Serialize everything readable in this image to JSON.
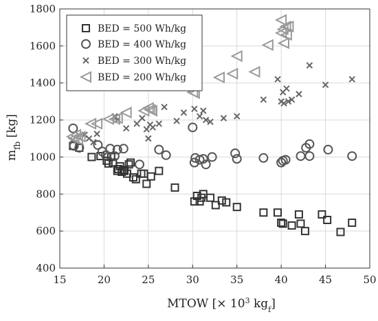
{
  "chart_data": {
    "type": "scatter",
    "title": "",
    "xlabel_main": "MTOW [× 10",
    "xlabel_sup": "3",
    "xlabel_unit": " kg",
    "xlabel_sub": "f",
    "xlabel_close": "]",
    "ylabel_main": "m",
    "ylabel_sub": "fb",
    "ylabel_unit": " [kg]",
    "xlim": [
      15,
      50
    ],
    "ylim": [
      400,
      1800
    ],
    "xticks": [
      15,
      20,
      25,
      30,
      35,
      40,
      45,
      50
    ],
    "yticks": [
      400,
      600,
      800,
      1000,
      1200,
      1400,
      1600,
      1800
    ],
    "grid": true,
    "legend_position": "top-left",
    "series": [
      {
        "name": "BED = 500 Wh/kg",
        "marker": "square",
        "color": "#333333",
        "points": [
          [
            16.5,
            1060
          ],
          [
            17.2,
            1050
          ],
          [
            18.6,
            1000
          ],
          [
            19.6,
            1005
          ],
          [
            20.3,
            980
          ],
          [
            20.5,
            965
          ],
          [
            20.8,
            1000
          ],
          [
            21.0,
            970
          ],
          [
            21.5,
            925
          ],
          [
            21.6,
            935
          ],
          [
            21.8,
            950
          ],
          [
            22.0,
            920
          ],
          [
            22.2,
            930
          ],
          [
            22.3,
            925
          ],
          [
            22.6,
            910
          ],
          [
            22.8,
            960
          ],
          [
            23.0,
            970
          ],
          [
            23.3,
            890
          ],
          [
            23.6,
            880
          ],
          [
            24.2,
            910
          ],
          [
            24.5,
            910
          ],
          [
            24.8,
            855
          ],
          [
            25.3,
            895
          ],
          [
            26.2,
            925
          ],
          [
            28.0,
            835
          ],
          [
            30.2,
            760
          ],
          [
            30.5,
            790
          ],
          [
            30.8,
            760
          ],
          [
            31.0,
            780
          ],
          [
            31.2,
            800
          ],
          [
            32.0,
            780
          ],
          [
            32.6,
            740
          ],
          [
            33.3,
            765
          ],
          [
            33.8,
            755
          ],
          [
            35.0,
            730
          ],
          [
            38.0,
            700
          ],
          [
            39.6,
            700
          ],
          [
            40.0,
            645
          ],
          [
            40.2,
            640
          ],
          [
            41.2,
            630
          ],
          [
            42.0,
            690
          ],
          [
            42.2,
            640
          ],
          [
            42.7,
            600
          ],
          [
            44.6,
            690
          ],
          [
            45.2,
            660
          ],
          [
            46.7,
            595
          ],
          [
            48.0,
            645
          ]
        ]
      },
      {
        "name": "BED = 400 Wh/kg",
        "marker": "circle",
        "color": "#555555",
        "points": [
          [
            16.5,
            1155
          ],
          [
            16.6,
            1060
          ],
          [
            17.2,
            1050
          ],
          [
            19.3,
            1065
          ],
          [
            19.8,
            1030
          ],
          [
            20.2,
            1010
          ],
          [
            20.7,
            1045
          ],
          [
            21.2,
            1005
          ],
          [
            21.5,
            1040
          ],
          [
            22.2,
            1045
          ],
          [
            24.0,
            960
          ],
          [
            26.2,
            1040
          ],
          [
            27.0,
            1010
          ],
          [
            30.0,
            1160
          ],
          [
            30.2,
            970
          ],
          [
            30.3,
            995
          ],
          [
            30.8,
            985
          ],
          [
            31.2,
            990
          ],
          [
            31.5,
            960
          ],
          [
            32.2,
            1000
          ],
          [
            34.8,
            1020
          ],
          [
            35.0,
            990
          ],
          [
            38.0,
            995
          ],
          [
            40.0,
            970
          ],
          [
            40.2,
            980
          ],
          [
            40.5,
            985
          ],
          [
            42.2,
            1005
          ],
          [
            42.8,
            1050
          ],
          [
            43.2,
            1070
          ],
          [
            43.2,
            1005
          ],
          [
            45.3,
            1040
          ],
          [
            48.0,
            1005
          ]
        ]
      },
      {
        "name": "BED = 300 Wh/kg",
        "marker": "x",
        "color": "#666666",
        "points": [
          [
            16.4,
            1090
          ],
          [
            17.8,
            1120
          ],
          [
            18.3,
            1100
          ],
          [
            18.8,
            1080
          ],
          [
            19.2,
            1125
          ],
          [
            21.2,
            1220
          ],
          [
            21.5,
            1200
          ],
          [
            22.5,
            1155
          ],
          [
            23.7,
            1180
          ],
          [
            24.3,
            1210
          ],
          [
            24.8,
            1150
          ],
          [
            25.0,
            1100
          ],
          [
            25.2,
            1175
          ],
          [
            25.5,
            1160
          ],
          [
            26.2,
            1180
          ],
          [
            26.8,
            1270
          ],
          [
            28.2,
            1195
          ],
          [
            29.0,
            1240
          ],
          [
            30.2,
            1260
          ],
          [
            30.8,
            1220
          ],
          [
            31.2,
            1250
          ],
          [
            31.5,
            1200
          ],
          [
            32.0,
            1190
          ],
          [
            33.5,
            1210
          ],
          [
            35.0,
            1220
          ],
          [
            38.0,
            1310
          ],
          [
            39.6,
            1420
          ],
          [
            40.0,
            1300
          ],
          [
            40.2,
            1350
          ],
          [
            40.3,
            1290
          ],
          [
            40.6,
            1370
          ],
          [
            40.8,
            1300
          ],
          [
            41.2,
            1310
          ],
          [
            42.0,
            1340
          ],
          [
            43.2,
            1495
          ],
          [
            45.0,
            1390
          ],
          [
            48.0,
            1420
          ]
        ]
      },
      {
        "name": "BED = 200 Wh/kg",
        "marker": "triangle-left",
        "color": "#999999",
        "points": [
          [
            16.4,
            1110
          ],
          [
            16.6,
            1100
          ],
          [
            16.8,
            1120
          ],
          [
            17.0,
            1095
          ],
          [
            17.3,
            1110
          ],
          [
            18.5,
            1180
          ],
          [
            19.2,
            1180
          ],
          [
            20.5,
            1205
          ],
          [
            21.2,
            1205
          ],
          [
            21.5,
            1210
          ],
          [
            22.5,
            1240
          ],
          [
            24.5,
            1250
          ],
          [
            25.0,
            1265
          ],
          [
            25.2,
            1255
          ],
          [
            25.4,
            1250
          ],
          [
            30.0,
            1350
          ],
          [
            30.2,
            1345
          ],
          [
            33.0,
            1430
          ],
          [
            34.5,
            1450
          ],
          [
            35.0,
            1545
          ],
          [
            37.0,
            1460
          ],
          [
            38.5,
            1605
          ],
          [
            40.0,
            1740
          ],
          [
            40.0,
            1670
          ],
          [
            40.2,
            1690
          ],
          [
            40.3,
            1615
          ],
          [
            40.5,
            1705
          ],
          [
            40.6,
            1660
          ],
          [
            40.8,
            1705
          ]
        ]
      }
    ]
  }
}
